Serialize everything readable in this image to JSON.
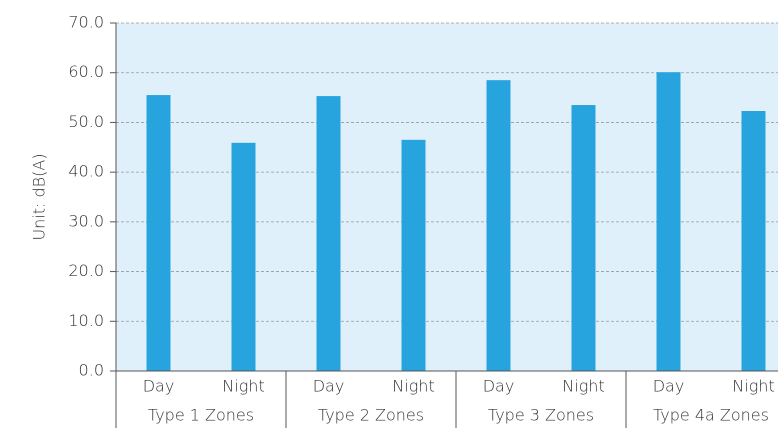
{
  "chart_data": {
    "type": "bar",
    "y_label": "Unit: dB(A)",
    "categories": [
      "Day",
      "Night",
      "Day",
      "Night",
      "Day",
      "Night",
      "Day",
      "Night"
    ],
    "groups": [
      "Type 1 Zones",
      "Type 2 Zones",
      "Type 3 Zones",
      "Type 4a Zones"
    ],
    "values": [
      55.5,
      45.9,
      55.3,
      46.5,
      58.5,
      53.5,
      60.1,
      52.3
    ],
    "color": "#27a3dd",
    "ylim": [
      0,
      70
    ],
    "yticks": [
      {
        "value": 0,
        "label": "0.0"
      },
      {
        "value": 10,
        "label": "10.0"
      },
      {
        "value": 20,
        "label": "20.0"
      },
      {
        "value": 30,
        "label": "30.0"
      },
      {
        "value": 40,
        "label": "40.0"
      },
      {
        "value": 50,
        "label": "50.0"
      },
      {
        "value": 60,
        "label": "60.0"
      },
      {
        "value": 70,
        "label": "70.0"
      }
    ],
    "grid": true
  }
}
